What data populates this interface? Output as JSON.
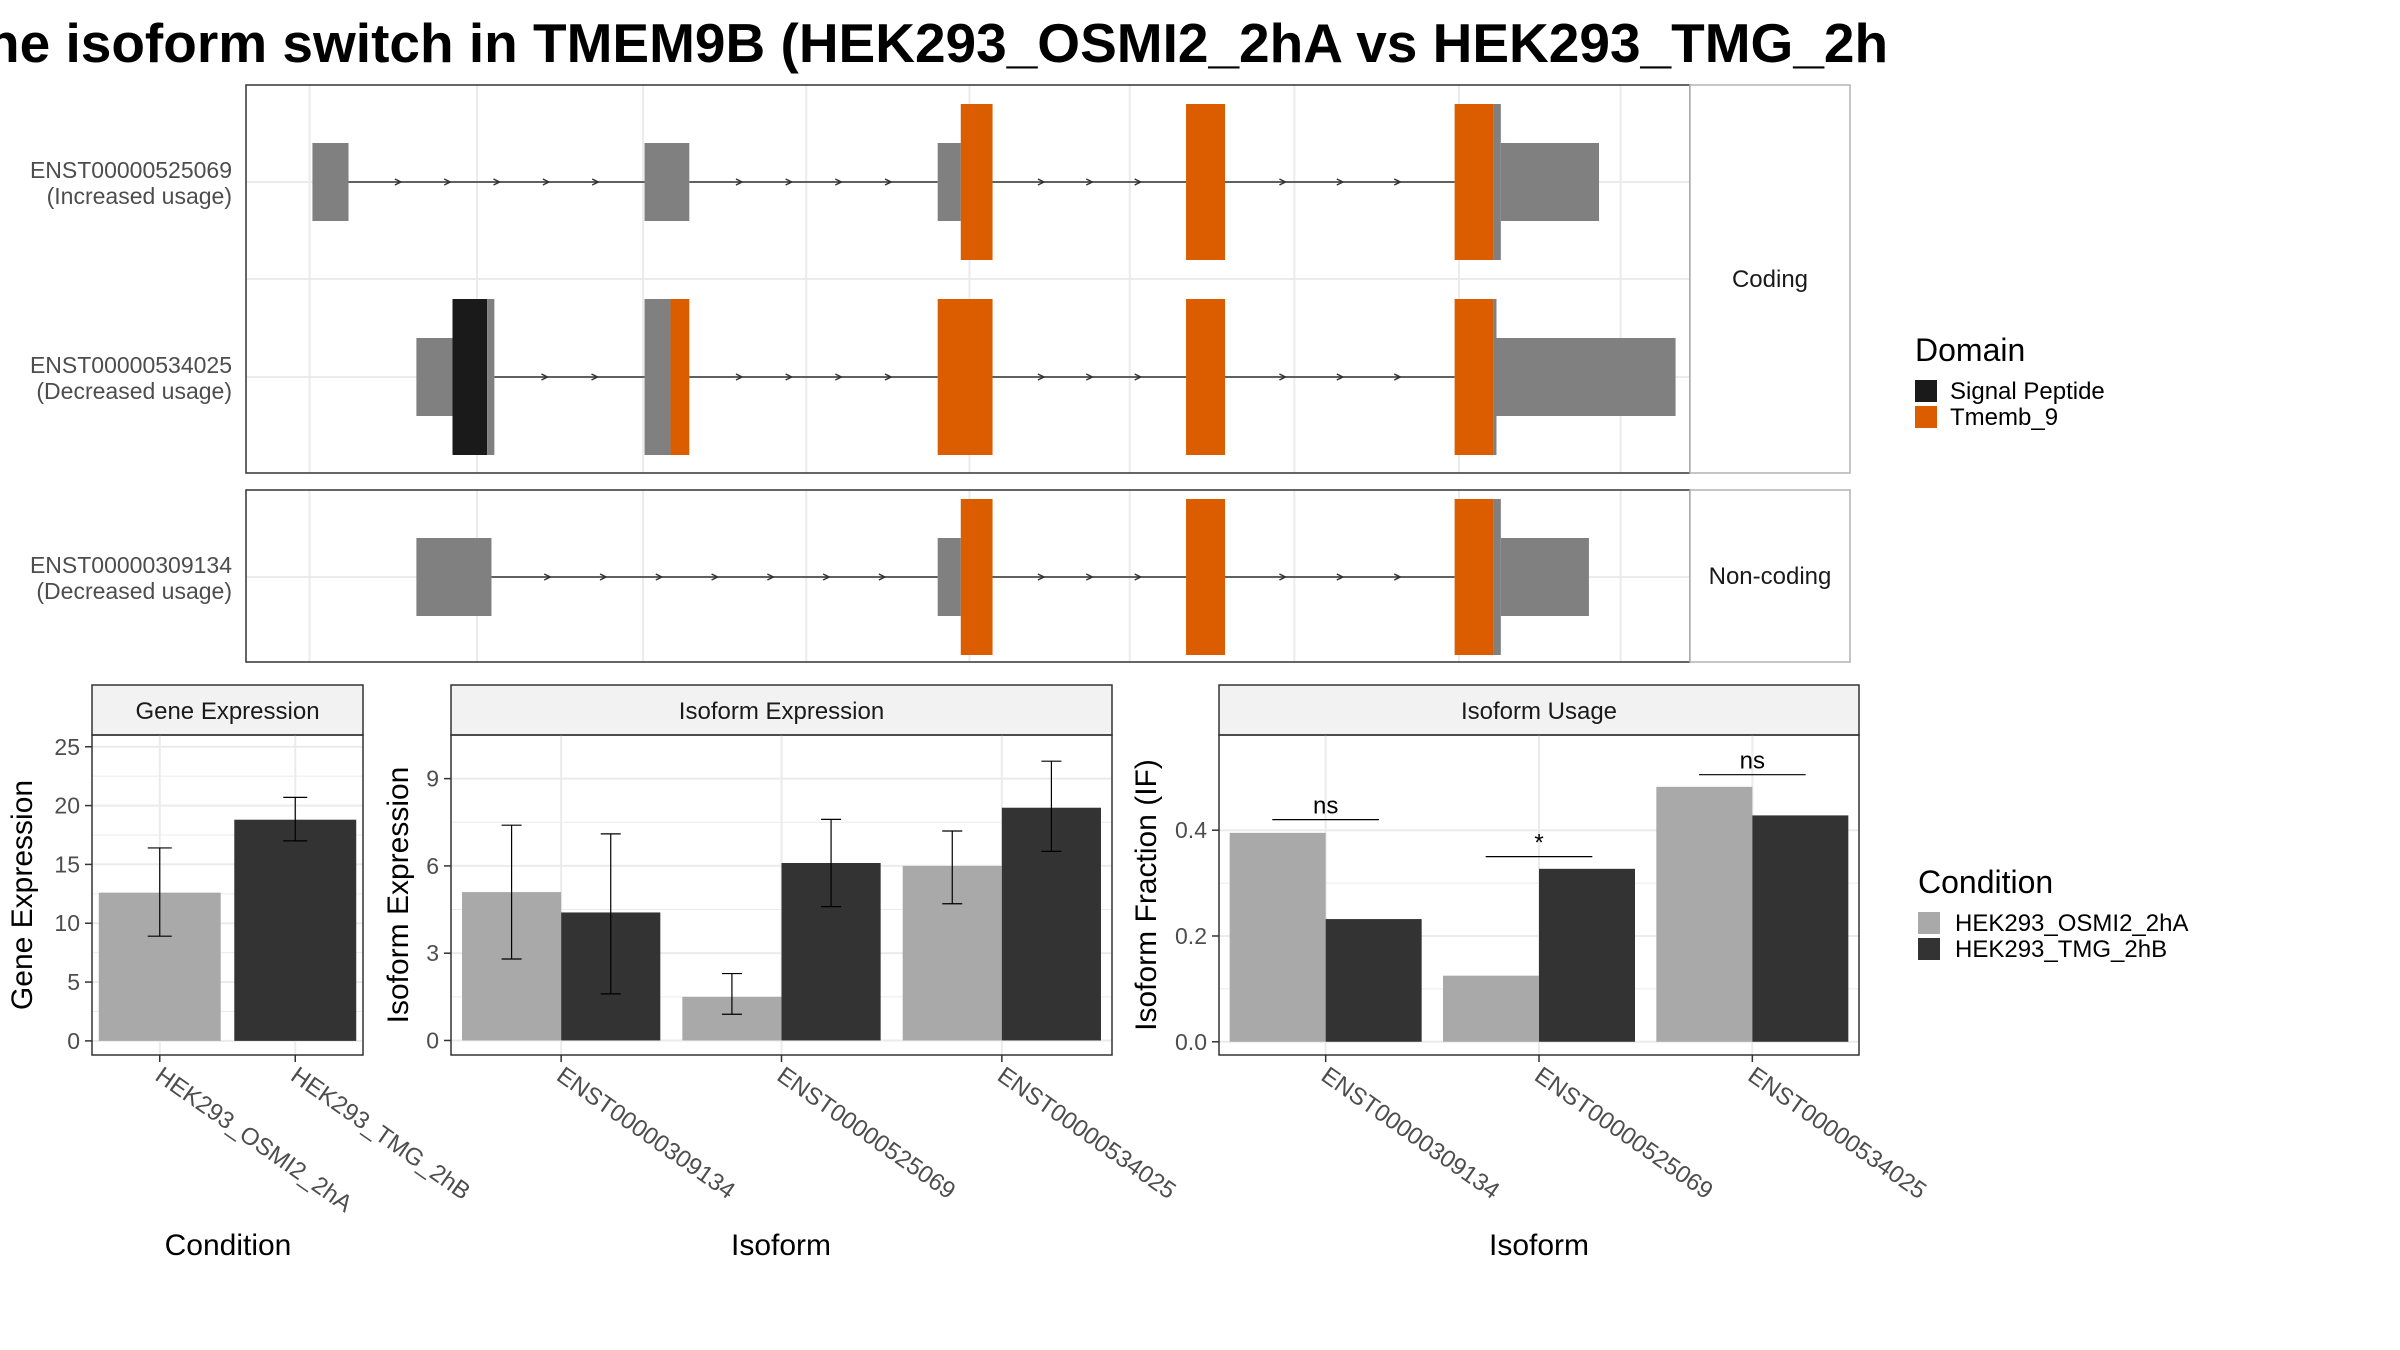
{
  "title": "ne isoform switch in TMEM9B (HEK293_OSMI2_2hA vs HEK293_TMG_2h",
  "colors": {
    "exon": "#808080",
    "intron": "#333333",
    "signal_peptide": "#1a1a1a",
    "tmemb_9": "#dc5c00",
    "cond_a": "#a9a9a9",
    "cond_b": "#333333",
    "grid": "#ebebeb",
    "strip": "#f2f2f2"
  },
  "structure": {
    "coord_range": [
      0,
      100
    ],
    "coord_gridlines": [
      4.4,
      16,
      27.5,
      38.8,
      50.1,
      61.2,
      72.6,
      84,
      95.2
    ],
    "legend": {
      "title": "Domain",
      "items": [
        {
          "label": "Signal Peptide",
          "color": "#1a1a1a"
        },
        {
          "label": "Tmemb_9",
          "color": "#dc5c00"
        }
      ]
    },
    "panels": [
      {
        "strip": "Coding",
        "isoforms": [
          {
            "name": "ENST00000525069",
            "usage": "(Increased usage)",
            "exons": [
              {
                "s": 4.6,
                "e": 7.1,
                "k": "utr"
              },
              {
                "s": 27.6,
                "e": 30.7,
                "k": "utr"
              },
              {
                "s": 47.9,
                "e": 49.5,
                "k": "utr"
              },
              {
                "s": 49.5,
                "e": 51.7,
                "k": "tm"
              },
              {
                "s": 65.1,
                "e": 67.8,
                "k": "tm"
              },
              {
                "s": 83.7,
                "e": 86.4,
                "k": "tm"
              },
              {
                "s": 86.4,
                "e": 86.9,
                "k": "cds"
              },
              {
                "s": 86.9,
                "e": 93.7,
                "k": "utr"
              }
            ]
          },
          {
            "name": "ENST00000534025",
            "usage": "(Decreased usage)",
            "exons": [
              {
                "s": 11.8,
                "e": 14.3,
                "k": "utr"
              },
              {
                "s": 14.3,
                "e": 16.7,
                "k": "sp"
              },
              {
                "s": 16.7,
                "e": 17.2,
                "k": "cds"
              },
              {
                "s": 27.6,
                "e": 29.4,
                "k": "cds"
              },
              {
                "s": 29.4,
                "e": 30.7,
                "k": "tm"
              },
              {
                "s": 47.9,
                "e": 51.7,
                "k": "tm"
              },
              {
                "s": 65.1,
                "e": 67.8,
                "k": "tm"
              },
              {
                "s": 83.7,
                "e": 86.4,
                "k": "tm"
              },
              {
                "s": 86.4,
                "e": 86.6,
                "k": "cds"
              },
              {
                "s": 86.6,
                "e": 99.0,
                "k": "utr"
              }
            ]
          }
        ]
      },
      {
        "strip": "Non-coding",
        "isoforms": [
          {
            "name": "ENST00000309134",
            "usage": "(Decreased usage)",
            "exons": [
              {
                "s": 11.8,
                "e": 17.0,
                "k": "utr"
              },
              {
                "s": 47.9,
                "e": 49.5,
                "k": "utr"
              },
              {
                "s": 49.5,
                "e": 51.7,
                "k": "tm"
              },
              {
                "s": 65.1,
                "e": 67.8,
                "k": "tm"
              },
              {
                "s": 83.7,
                "e": 86.4,
                "k": "tm"
              },
              {
                "s": 86.4,
                "e": 86.9,
                "k": "cds"
              },
              {
                "s": 86.9,
                "e": 93.0,
                "k": "utr"
              }
            ]
          }
        ]
      }
    ]
  },
  "chart_data": [
    {
      "type": "bar",
      "title": "Gene Expression",
      "xlabel": "Condition",
      "ylabel": "Gene Expression",
      "categories": [
        "HEK293_OSMI2_2hA",
        "HEK293_TMG_2hB"
      ],
      "values": [
        12.6,
        18.8
      ],
      "err_low": [
        8.9,
        17.0
      ],
      "err_high": [
        16.4,
        20.7
      ],
      "ylim": [
        -1.2,
        26
      ],
      "yticks": [
        0,
        5,
        10,
        15,
        20,
        25
      ]
    },
    {
      "type": "bar",
      "title": "Isoform Expression",
      "xlabel": "Isoform",
      "ylabel": "Isoform Expression",
      "categories": [
        "ENST00000309134",
        "ENST00000525069",
        "ENST00000534025"
      ],
      "series": [
        {
          "name": "HEK293_OSMI2_2hA",
          "values": [
            5.1,
            1.5,
            6.0
          ],
          "err_low": [
            2.8,
            0.9,
            4.7
          ],
          "err_high": [
            7.4,
            2.3,
            7.2
          ]
        },
        {
          "name": "HEK293_TMG_2hB",
          "values": [
            4.4,
            6.1,
            8.0
          ],
          "err_low": [
            1.6,
            4.6,
            6.5
          ],
          "err_high": [
            7.1,
            7.6,
            9.6
          ]
        }
      ],
      "ylim": [
        -0.5,
        10.5
      ],
      "yticks": [
        0,
        3,
        6,
        9
      ]
    },
    {
      "type": "bar",
      "title": "Isoform Usage",
      "xlabel": "Isoform",
      "ylabel": "Isoform Fraction (IF)",
      "categories": [
        "ENST00000309134",
        "ENST00000525069",
        "ENST00000534025"
      ],
      "series": [
        {
          "name": "HEK293_OSMI2_2hA",
          "values": [
            0.395,
            0.125,
            0.482
          ]
        },
        {
          "name": "HEK293_TMG_2hB",
          "values": [
            0.232,
            0.327,
            0.428
          ]
        }
      ],
      "significance": [
        {
          "label": "ns",
          "y": 0.42
        },
        {
          "label": "*",
          "y": 0.35
        },
        {
          "label": "ns",
          "y": 0.505
        }
      ],
      "ylim": [
        -0.025,
        0.58
      ],
      "yticks": [
        0.0,
        0.2,
        0.4
      ],
      "ytick_labels": [
        "0.0",
        "0.2",
        "0.4"
      ]
    }
  ],
  "condition_legend": {
    "title": "Condition",
    "items": [
      {
        "label": "HEK293_OSMI2_2hA",
        "color": "#a9a9a9"
      },
      {
        "label": "HEK293_TMG_2hB",
        "color": "#333333"
      }
    ]
  }
}
